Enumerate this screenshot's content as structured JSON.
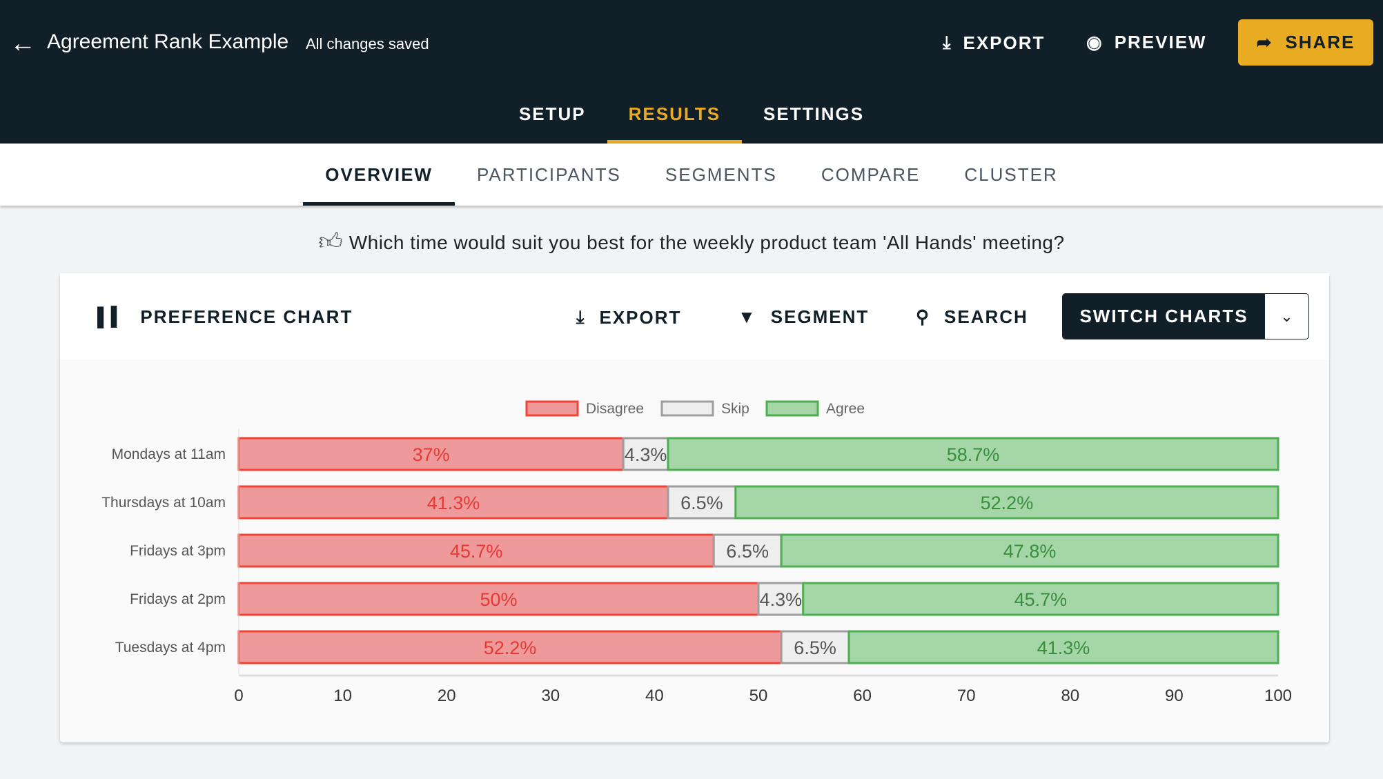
{
  "header": {
    "back_icon": "arrow-left-icon",
    "title": "Agreement Rank Example",
    "status": "All changes saved",
    "export_label": "EXPORT",
    "preview_label": "PREVIEW",
    "share_label": "SHARE"
  },
  "tabs": [
    {
      "label": "SETUP"
    },
    {
      "label": "RESULTS",
      "active": true
    },
    {
      "label": "SETTINGS"
    }
  ],
  "subtabs": [
    {
      "label": "OVERVIEW",
      "active": true
    },
    {
      "label": "PARTICIPANTS"
    },
    {
      "label": "SEGMENTS"
    },
    {
      "label": "COMPARE"
    },
    {
      "label": "CLUSTER"
    }
  ],
  "question": "Which time would suit you best for the weekly product team 'All Hands' meeting?",
  "card": {
    "title": "PREFERENCE CHART",
    "export_label": "EXPORT",
    "segment_label": "SEGMENT",
    "search_label": "SEARCH",
    "switch_label": "SWITCH CHARTS"
  },
  "colors": {
    "accent": "#e8ab22",
    "dark": "#111f28"
  },
  "chart_data": {
    "type": "bar",
    "stacked": true,
    "orientation": "horizontal",
    "categories": [
      "Mondays at 11am",
      "Thursdays at 10am",
      "Fridays at 3pm",
      "Fridays at 2pm",
      "Tuesdays at 4pm"
    ],
    "series": [
      {
        "name": "Disagree",
        "values": [
          37,
          41.3,
          45.7,
          50,
          52.2
        ],
        "labels": [
          "37%",
          "41.3%",
          "45.7%",
          "50%",
          "52.2%"
        ],
        "fill": "#ee9a9a",
        "stroke": "#f44336",
        "text": "#e53935"
      },
      {
        "name": "Skip",
        "values": [
          4.3,
          6.5,
          6.5,
          4.3,
          6.5
        ],
        "labels": [
          "4.3%",
          "6.5%",
          "6.5%",
          "4.3%",
          "6.5%"
        ],
        "fill": "#eeeeee",
        "stroke": "#9e9e9e",
        "text": "#555555"
      },
      {
        "name": "Agree",
        "values": [
          58.7,
          52.2,
          47.8,
          45.7,
          41.3
        ],
        "labels": [
          "58.7%",
          "52.2%",
          "47.8%",
          "45.7%",
          "41.3%"
        ],
        "fill": "#a5d6a7",
        "stroke": "#4caf50",
        "text": "#388e3c"
      }
    ],
    "xlim": [
      0,
      100
    ],
    "xticks": [
      "0",
      "10",
      "20",
      "30",
      "40",
      "50",
      "60",
      "70",
      "80",
      "90",
      "100"
    ],
    "legend": "top"
  }
}
